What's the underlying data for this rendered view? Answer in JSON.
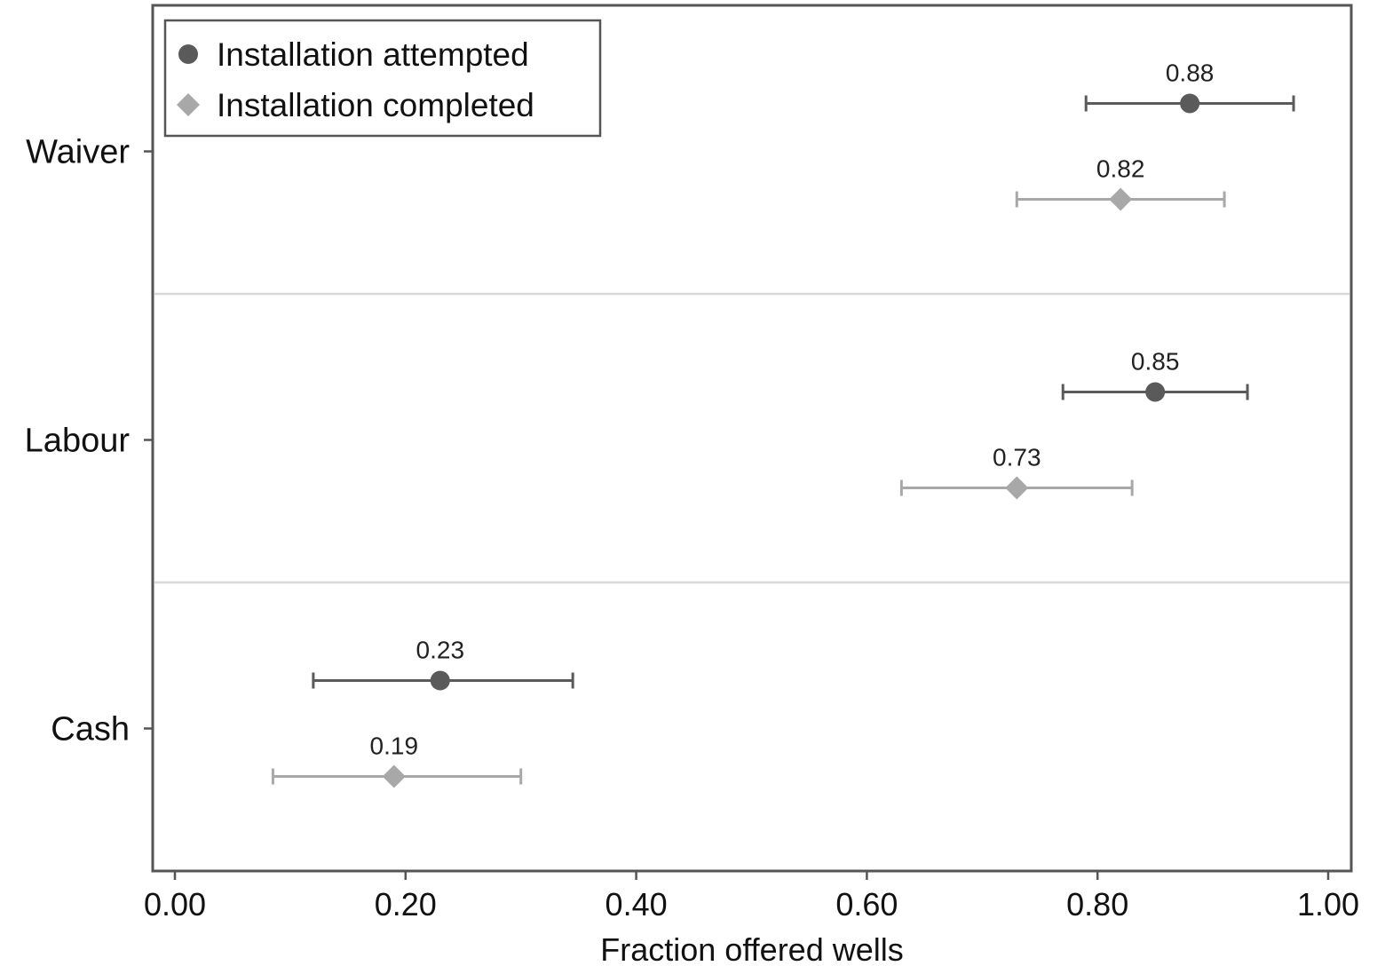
{
  "chart_data": {
    "type": "scatter",
    "orientation": "horizontal",
    "title": "",
    "xlabel": "Fraction offered wells",
    "ylabel": "",
    "xlim": [
      0,
      1.0
    ],
    "x_ticks": [
      "0.00",
      "0.20",
      "0.40",
      "0.60",
      "0.80",
      "1.00"
    ],
    "x_tick_values": [
      0,
      0.2,
      0.4,
      0.6,
      0.8,
      1.0
    ],
    "categories": [
      "Waiver",
      "Labour",
      "Cash"
    ],
    "grid": "horizontal separators between categories",
    "legend_position": "top-left",
    "series": [
      {
        "name": "Installation attempted",
        "marker": "circle",
        "color": "#5a5a5a",
        "values": [
          0.88,
          0.85,
          0.23
        ],
        "labels": [
          "0.88",
          "0.85",
          "0.23"
        ],
        "ci_low": [
          0.79,
          0.77,
          0.12
        ],
        "ci_high": [
          0.97,
          0.93,
          0.345
        ]
      },
      {
        "name": "Installation completed",
        "marker": "diamond",
        "color": "#a8a8a8",
        "values": [
          0.82,
          0.73,
          0.19
        ],
        "labels": [
          "0.82",
          "0.73",
          "0.19"
        ],
        "ci_low": [
          0.73,
          0.63,
          0.085
        ],
        "ci_high": [
          0.91,
          0.83,
          0.3
        ]
      }
    ]
  }
}
